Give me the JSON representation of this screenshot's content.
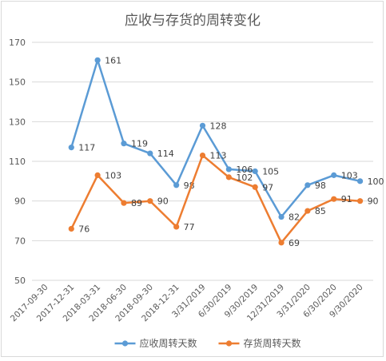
{
  "chart_data": {
    "type": "line",
    "title": "应收与存货的周转变化",
    "xlabel": "",
    "ylabel": "",
    "ylim": [
      50,
      170
    ],
    "yticks": [
      50,
      70,
      90,
      110,
      130,
      150,
      170
    ],
    "grid": true,
    "legend_position": "bottom",
    "categories": [
      "2017-09-30",
      "2017-12-31",
      "2018-03-31",
      "2018-06-30",
      "2018-09-30",
      "2018-12-31",
      "3/31/2019",
      "6/30/2019",
      "9/30/2019",
      "12/31/2019",
      "3/31/2020",
      "6/30/2020",
      "9/30/2020"
    ],
    "series": [
      {
        "name": "应收周转天数",
        "color": "#5b9bd5",
        "values": [
          null,
          117,
          161,
          119,
          114,
          98,
          128,
          106,
          105,
          82,
          98,
          103,
          100
        ]
      },
      {
        "name": "存货周转天数",
        "color": "#ed7d31",
        "values": [
          null,
          76,
          103,
          89,
          90,
          77,
          113,
          102,
          97,
          69,
          85,
          91,
          90
        ]
      }
    ]
  }
}
